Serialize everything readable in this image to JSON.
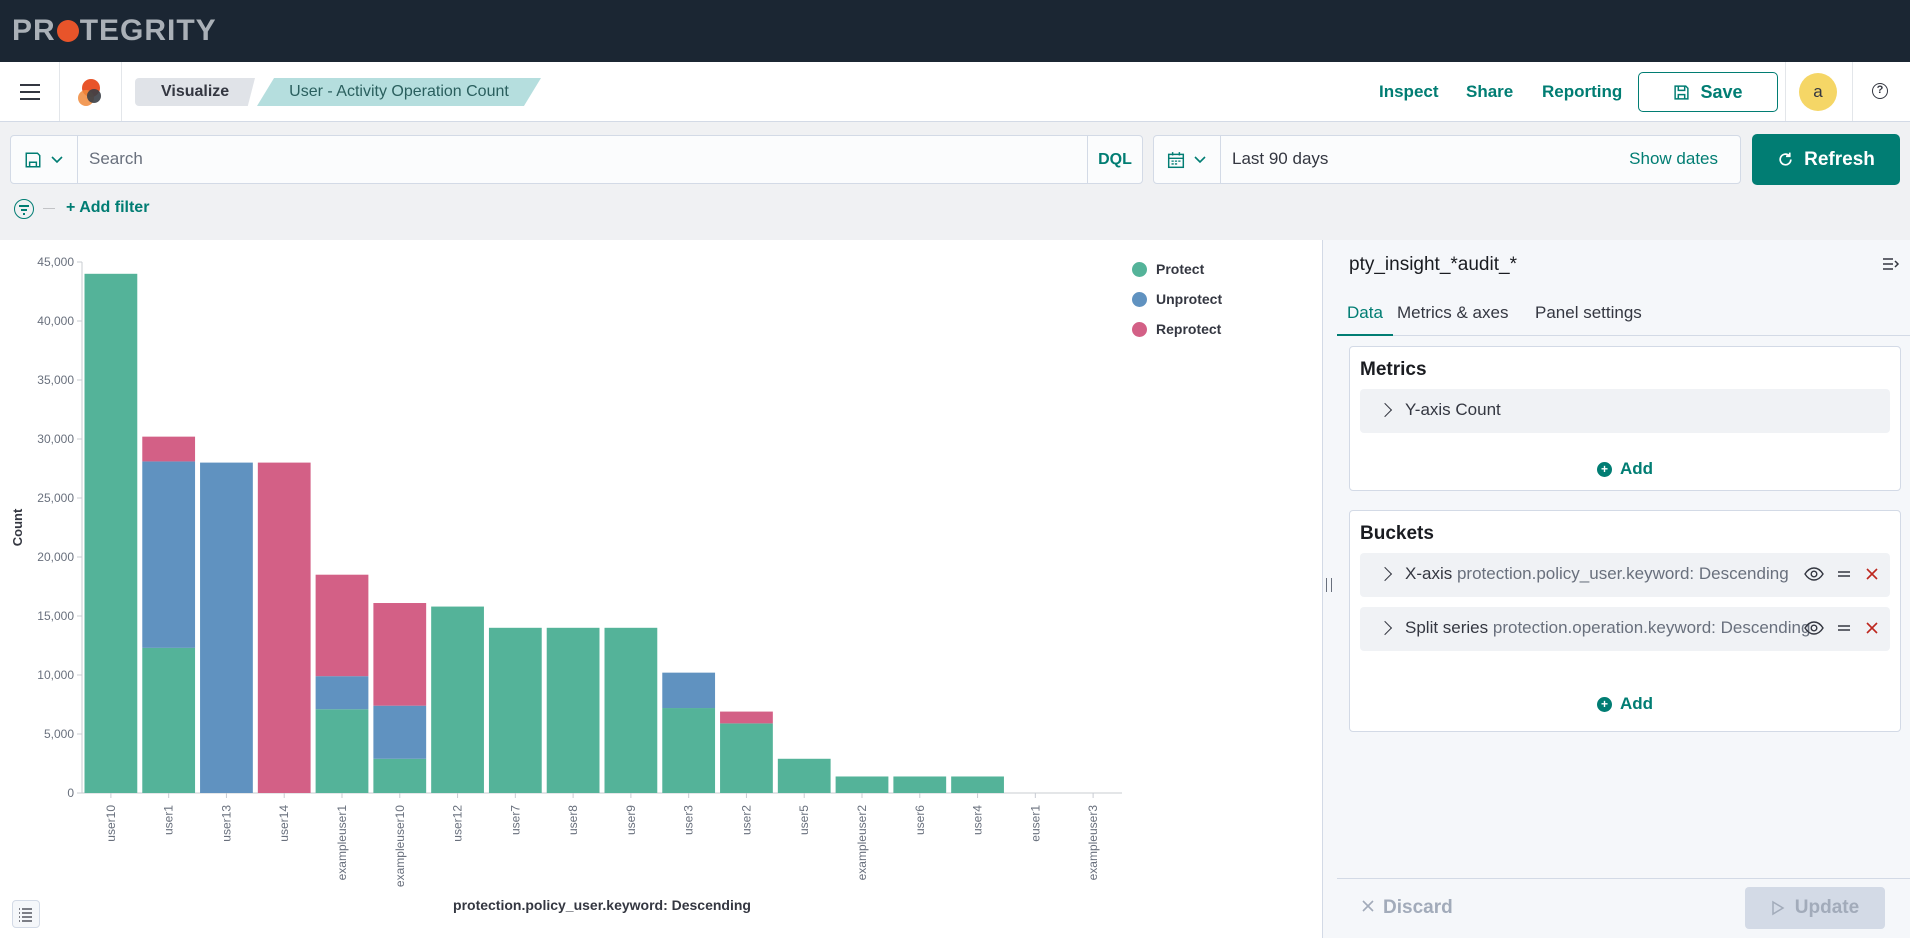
{
  "brand": {
    "name_pre": "PR",
    "name_post": "TEGRITY"
  },
  "header": {
    "breadcrumbs": [
      "Visualize",
      "User - Activity Operation Count"
    ],
    "links": {
      "inspect": "Inspect",
      "share": "Share",
      "reporting": "Reporting"
    },
    "save_label": "Save",
    "avatar_initial": "a"
  },
  "query": {
    "placeholder": "Search",
    "language": "DQL"
  },
  "date": {
    "range": "Last 90 days",
    "show_dates": "Show dates",
    "refresh": "Refresh"
  },
  "filter": {
    "add_label": "+ Add filter"
  },
  "chart_data": {
    "type": "bar",
    "stacked": true,
    "categories": [
      "user10",
      "user1",
      "user13",
      "user14",
      "exampleuser1",
      "exampleuser10",
      "user12",
      "user7",
      "user8",
      "user9",
      "user3",
      "user2",
      "user5",
      "exampleuser2",
      "user6",
      "user4",
      "euser1",
      "exampleuser3"
    ],
    "series": [
      {
        "name": "Protect",
        "color": "#54b399",
        "values": [
          44000,
          12300,
          0,
          0,
          7100,
          2900,
          15800,
          14000,
          14000,
          14000,
          7200,
          5900,
          2900,
          1400,
          1400,
          1400,
          0,
          0
        ]
      },
      {
        "name": "Unprotect",
        "color": "#6092c0",
        "values": [
          0,
          15800,
          28000,
          0,
          2800,
          4500,
          0,
          0,
          0,
          0,
          3000,
          0,
          0,
          0,
          0,
          0,
          0,
          0
        ]
      },
      {
        "name": "Reprotect",
        "color": "#d36086",
        "values": [
          0,
          2100,
          0,
          28000,
          8600,
          8700,
          0,
          0,
          0,
          0,
          0,
          1000,
          0,
          0,
          0,
          0,
          0,
          0
        ]
      }
    ],
    "xlabel": "protection.policy_user.keyword: Descending",
    "ylabel": "Count",
    "ylim": [
      0,
      45000
    ],
    "yticks": [
      "0",
      "5,000",
      "10,000",
      "15,000",
      "20,000",
      "25,000",
      "30,000",
      "35,000",
      "40,000",
      "45,000"
    ],
    "legend_position": "top-right"
  },
  "side": {
    "index_pattern": "pty_insight_*audit_*",
    "tabs": [
      "Data",
      "Metrics & axes",
      "Panel settings"
    ],
    "metrics": {
      "title": "Metrics",
      "items": [
        {
          "label": "Y-axis Count"
        }
      ],
      "add": "Add"
    },
    "buckets": {
      "title": "Buckets",
      "items": [
        {
          "type": "X-axis",
          "value": "protection.policy_user.keyword: Descending"
        },
        {
          "type": "Split series",
          "value": "protection.operation.keyword: Descending"
        }
      ],
      "add": "Add"
    },
    "discard": "Discard",
    "update": "Update"
  }
}
